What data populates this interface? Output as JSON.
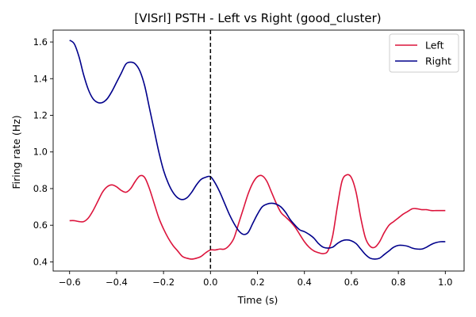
{
  "chart_data": {
    "type": "line",
    "title": "[VISrl] PSTH - Left vs Right (good_cluster)",
    "xlabel": "Time (s)",
    "ylabel": "Firing rate (Hz)",
    "xlim": [
      -0.67,
      1.08
    ],
    "ylim": [
      0.35,
      1.665
    ],
    "xticks": [
      -0.6,
      -0.4,
      -0.2,
      0.0,
      0.2,
      0.4,
      0.6,
      0.8,
      1.0
    ],
    "xtick_labels": [
      "−0.6",
      "−0.4",
      "−0.2",
      "0.0",
      "0.2",
      "0.4",
      "0.6",
      "0.8",
      "1.0"
    ],
    "yticks": [
      0.4,
      0.6,
      0.8,
      1.0,
      1.2,
      1.4,
      1.6
    ],
    "ytick_labels": [
      "0.4",
      "0.6",
      "0.8",
      "1.0",
      "1.2",
      "1.4",
      "1.6"
    ],
    "grid": false,
    "legend_position": "top-right",
    "vline": {
      "x": 0.0,
      "style": "dashed",
      "color": "#000000"
    },
    "series": [
      {
        "name": "Left",
        "color": "#DC143C",
        "x": [
          -0.6,
          -0.58,
          -0.56,
          -0.54,
          -0.52,
          -0.5,
          -0.48,
          -0.46,
          -0.44,
          -0.42,
          -0.4,
          -0.38,
          -0.36,
          -0.34,
          -0.32,
          -0.3,
          -0.28,
          -0.26,
          -0.24,
          -0.22,
          -0.2,
          -0.18,
          -0.16,
          -0.14,
          -0.12,
          -0.1,
          -0.08,
          -0.06,
          -0.04,
          -0.02,
          0.0,
          0.02,
          0.04,
          0.06,
          0.08,
          0.1,
          0.12,
          0.14,
          0.16,
          0.18,
          0.2,
          0.22,
          0.24,
          0.26,
          0.28,
          0.3,
          0.32,
          0.34,
          0.36,
          0.38,
          0.4,
          0.42,
          0.44,
          0.46,
          0.48,
          0.5,
          0.52,
          0.54,
          0.56,
          0.58,
          0.6,
          0.62,
          0.64,
          0.66,
          0.68,
          0.7,
          0.72,
          0.74,
          0.76,
          0.78,
          0.8,
          0.82,
          0.84,
          0.86,
          0.88,
          0.9,
          0.92,
          0.94,
          0.96,
          0.98,
          1.0
        ],
        "y": [
          0.625,
          0.625,
          0.62,
          0.62,
          0.64,
          0.68,
          0.73,
          0.78,
          0.81,
          0.82,
          0.81,
          0.79,
          0.78,
          0.8,
          0.84,
          0.87,
          0.86,
          0.8,
          0.72,
          0.64,
          0.58,
          0.53,
          0.49,
          0.46,
          0.43,
          0.42,
          0.415,
          0.42,
          0.43,
          0.45,
          0.465,
          0.465,
          0.47,
          0.47,
          0.49,
          0.53,
          0.61,
          0.69,
          0.77,
          0.83,
          0.865,
          0.87,
          0.84,
          0.78,
          0.72,
          0.67,
          0.645,
          0.62,
          0.59,
          0.55,
          0.51,
          0.48,
          0.46,
          0.45,
          0.445,
          0.46,
          0.54,
          0.7,
          0.84,
          0.875,
          0.86,
          0.78,
          0.64,
          0.53,
          0.485,
          0.48,
          0.51,
          0.56,
          0.6,
          0.62,
          0.64,
          0.66,
          0.675,
          0.69,
          0.69,
          0.685,
          0.685,
          0.68,
          0.68,
          0.68,
          0.68
        ]
      },
      {
        "name": "Right",
        "color": "#00008B",
        "x": [
          -0.6,
          -0.58,
          -0.56,
          -0.54,
          -0.52,
          -0.5,
          -0.48,
          -0.46,
          -0.44,
          -0.42,
          -0.4,
          -0.38,
          -0.36,
          -0.34,
          -0.32,
          -0.3,
          -0.28,
          -0.26,
          -0.24,
          -0.22,
          -0.2,
          -0.18,
          -0.16,
          -0.14,
          -0.12,
          -0.1,
          -0.08,
          -0.06,
          -0.04,
          -0.02,
          0.0,
          0.02,
          0.04,
          0.06,
          0.08,
          0.1,
          0.12,
          0.14,
          0.16,
          0.18,
          0.2,
          0.22,
          0.24,
          0.26,
          0.28,
          0.3,
          0.32,
          0.34,
          0.36,
          0.38,
          0.4,
          0.42,
          0.44,
          0.46,
          0.48,
          0.5,
          0.52,
          0.54,
          0.56,
          0.58,
          0.6,
          0.62,
          0.64,
          0.66,
          0.68,
          0.7,
          0.72,
          0.74,
          0.76,
          0.78,
          0.8,
          0.82,
          0.84,
          0.86,
          0.88,
          0.9,
          0.92,
          0.94,
          0.96,
          0.98,
          1.0
        ],
        "y": [
          1.61,
          1.59,
          1.52,
          1.42,
          1.34,
          1.29,
          1.27,
          1.27,
          1.29,
          1.33,
          1.38,
          1.43,
          1.48,
          1.49,
          1.48,
          1.44,
          1.36,
          1.24,
          1.12,
          1.0,
          0.9,
          0.83,
          0.78,
          0.75,
          0.74,
          0.75,
          0.78,
          0.82,
          0.85,
          0.862,
          0.865,
          0.83,
          0.78,
          0.72,
          0.66,
          0.61,
          0.57,
          0.55,
          0.56,
          0.61,
          0.66,
          0.7,
          0.715,
          0.72,
          0.715,
          0.7,
          0.67,
          0.63,
          0.6,
          0.575,
          0.565,
          0.55,
          0.53,
          0.5,
          0.48,
          0.475,
          0.48,
          0.5,
          0.515,
          0.52,
          0.515,
          0.5,
          0.47,
          0.44,
          0.42,
          0.415,
          0.42,
          0.44,
          0.46,
          0.48,
          0.49,
          0.49,
          0.485,
          0.475,
          0.47,
          0.47,
          0.48,
          0.495,
          0.505,
          0.51,
          0.51
        ]
      }
    ]
  },
  "colors": {
    "axes": "#000000",
    "background": "#ffffff",
    "legend_border": "#cccccc"
  }
}
